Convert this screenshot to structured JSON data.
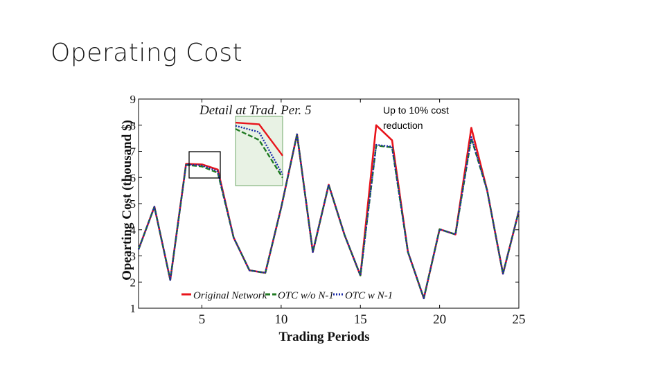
{
  "slide": {
    "title": "Operating Cost",
    "annotation": "Up to 10% cost reduction"
  },
  "colors": {
    "original": "#e8141b",
    "otc_wo": "#1f7a22",
    "otc_w": "#1a2aa8",
    "inset_bg": "#e8f2e4",
    "inset_border": "#6fa86a"
  },
  "chart_data": {
    "type": "line",
    "title": "",
    "xlabel": "Trading Periods",
    "ylabel": "Opearting Cost (thousand $)",
    "xlim": [
      1,
      25
    ],
    "ylim": [
      1,
      9
    ],
    "x_ticks": [
      5,
      10,
      15,
      20,
      25
    ],
    "y_ticks": [
      1,
      2,
      3,
      4,
      5,
      6,
      7,
      8,
      9
    ],
    "grid": false,
    "legend_position": "bottom",
    "x": [
      1,
      2,
      3,
      4,
      5,
      6,
      7,
      8,
      9,
      10,
      11,
      12,
      13,
      14,
      15,
      16,
      17,
      18,
      19,
      20,
      21,
      22,
      23,
      24,
      25
    ],
    "series": [
      {
        "name": "Original Network",
        "color_key": "original",
        "dash": "solid",
        "values": [
          3.25,
          4.88,
          2.08,
          6.52,
          6.5,
          6.3,
          3.7,
          2.45,
          2.35,
          4.85,
          7.65,
          3.15,
          5.72,
          3.8,
          2.25,
          8.0,
          7.42,
          3.15,
          1.38,
          4.02,
          3.82,
          7.9,
          5.5,
          2.32,
          4.72
        ]
      },
      {
        "name": "OTC w/o N-1",
        "color_key": "otc_wo",
        "dash": "dash",
        "values": [
          3.25,
          4.88,
          2.08,
          6.48,
          6.42,
          6.18,
          3.7,
          2.45,
          2.35,
          4.85,
          7.65,
          3.15,
          5.72,
          3.8,
          2.25,
          7.22,
          7.15,
          3.15,
          1.38,
          4.02,
          3.82,
          7.5,
          5.5,
          2.32,
          4.72
        ]
      },
      {
        "name": "OTC w N-1",
        "color_key": "otc_w",
        "dash": "dot",
        "values": [
          3.25,
          4.88,
          2.08,
          6.5,
          6.46,
          6.24,
          3.7,
          2.45,
          2.35,
          4.85,
          7.65,
          3.15,
          5.72,
          3.8,
          2.25,
          7.25,
          7.18,
          3.15,
          1.38,
          4.02,
          3.82,
          7.55,
          5.5,
          2.32,
          4.72
        ]
      }
    ],
    "inset": {
      "title": "Detail at Trad. Per. 5",
      "series": [
        {
          "name": "Original Network",
          "color_key": "original",
          "dash": "solid",
          "values": [
            7.6,
            7.55,
            6.55
          ]
        },
        {
          "name": "OTC w/o N-1",
          "color_key": "otc_wo",
          "dash": "dash",
          "values": [
            7.4,
            7.05,
            5.85
          ]
        },
        {
          "name": "OTC w N-1",
          "color_key": "otc_w",
          "dash": "dot",
          "values": [
            7.5,
            7.3,
            5.95
          ]
        }
      ],
      "ylim": [
        5.6,
        7.8
      ]
    }
  }
}
